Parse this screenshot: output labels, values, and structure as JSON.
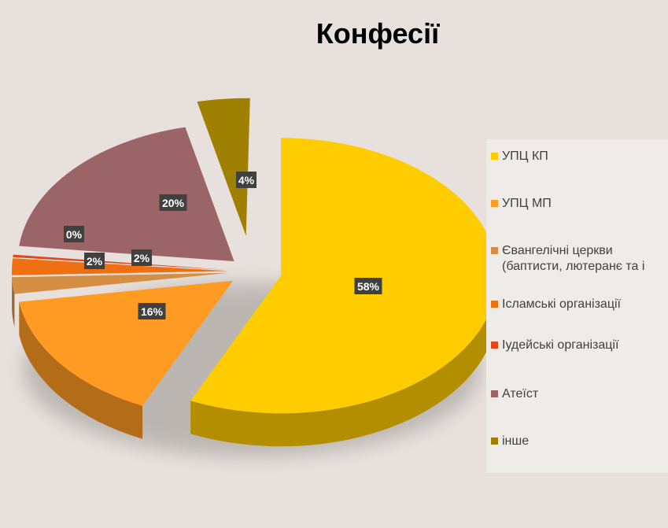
{
  "chart_data": {
    "type": "pie",
    "title": "Конфесії",
    "categories": [
      "УПЦ КП",
      "УПЦ МП",
      "Євангелічні церкви\n(баптисти, лютеранє та і",
      "Ісламські організації",
      "Іудейські організації",
      "Атеїст",
      "інше"
    ],
    "values": [
      58,
      16,
      2,
      2,
      0,
      20,
      4
    ],
    "labels": [
      "58%",
      "16%",
      "2%",
      "2%",
      "0%",
      "20%",
      "4%"
    ],
    "colors": [
      "#ffcc00",
      "#ff9a22",
      "#d48f45",
      "#ee7012",
      "#dc4a1a",
      "#9b6567",
      "#a08000"
    ],
    "legend_position": "right"
  }
}
